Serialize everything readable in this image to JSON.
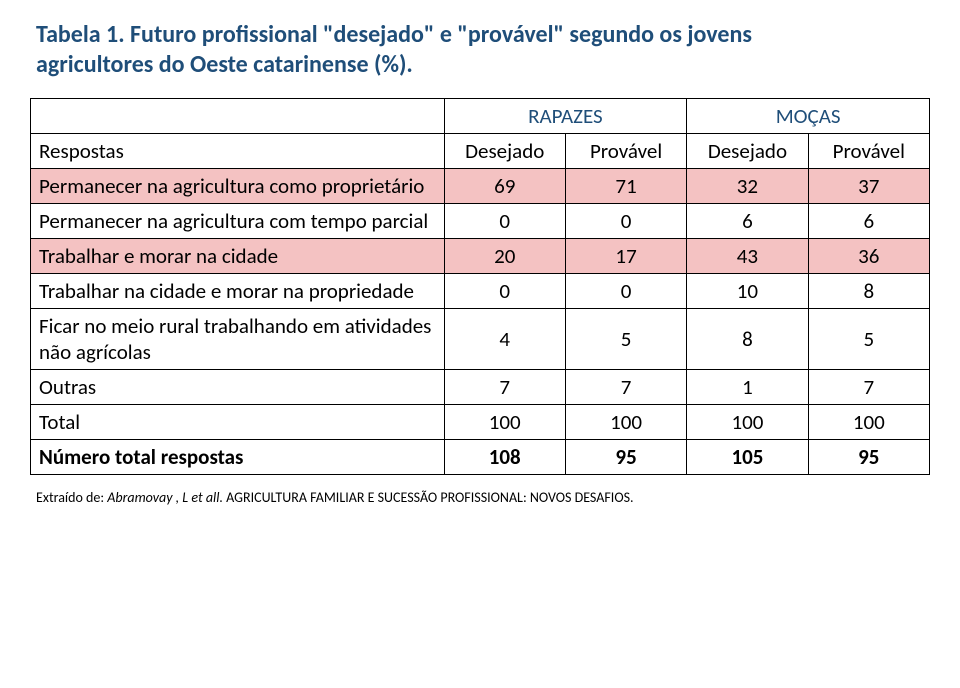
{
  "title": "Tabela 1. Futuro profissional \"desejado\" e \"provável\" segundo os jovens agricultores do Oeste catarinense (%).",
  "header": {
    "group1": "RAPAZES",
    "group2": "MOÇAS",
    "respostas": "Respostas",
    "desejado": "Desejado",
    "provavel": "Provável"
  },
  "rows": [
    {
      "label": "Permanecer na agricultura como proprietário",
      "v": [
        "69",
        "71",
        "32",
        "37"
      ],
      "hl": true
    },
    {
      "label": "Permanecer na agricultura com tempo parcial",
      "v": [
        "0",
        "0",
        "6",
        "6"
      ],
      "hl": false
    },
    {
      "label": "Trabalhar e morar na cidade",
      "v": [
        "20",
        "17",
        "43",
        "36"
      ],
      "hl": true
    },
    {
      "label": "Trabalhar na cidade e morar na propriedade",
      "v": [
        "0",
        "0",
        "10",
        "8"
      ],
      "hl": false
    },
    {
      "label": "Ficar no meio rural trabalhando em atividades não agrícolas",
      "v": [
        "4",
        "5",
        "8",
        "5"
      ],
      "hl": false
    },
    {
      "label": "Outras",
      "v": [
        "7",
        "7",
        "1",
        "7"
      ],
      "hl": false
    }
  ],
  "total": {
    "label": "Total",
    "v": [
      "100",
      "100",
      "100",
      "100"
    ]
  },
  "nresp": {
    "label": "Número total respostas",
    "v": [
      "108",
      "95",
      "105",
      "95"
    ]
  },
  "credit_prefix": "Extraído de: ",
  "credit_source": "Abramovay , L et all.",
  "credit_suffix": " AGRICULTURA FAMILIAR E SUCESSÃO PROFISSIONAL: NOVOS DESAFIOS."
}
